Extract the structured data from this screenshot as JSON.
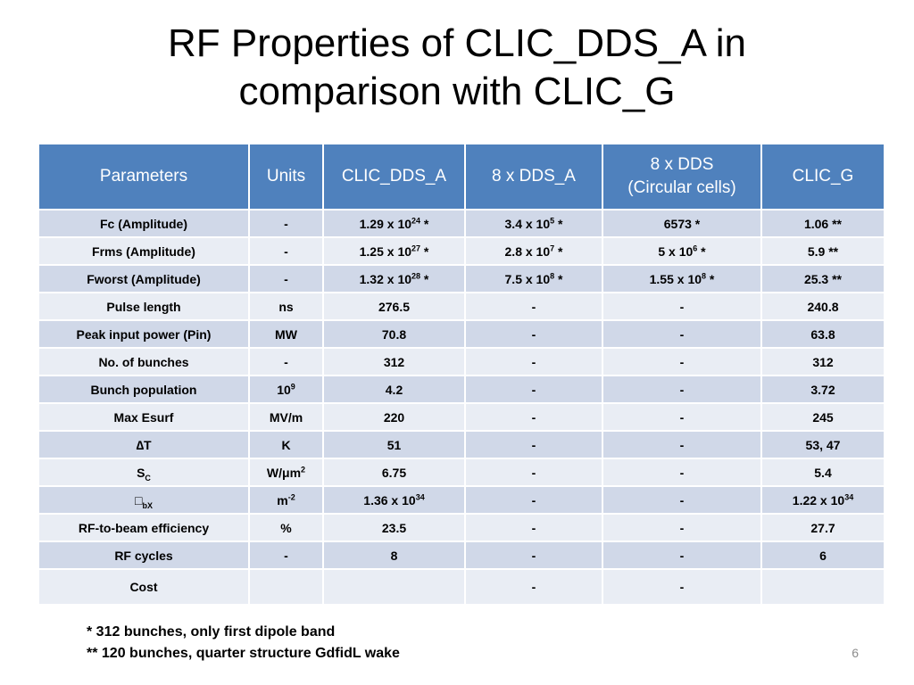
{
  "title": {
    "line1": "RF Properties of CLIC_DDS_A in",
    "line2": "comparison with CLIC_G"
  },
  "table": {
    "headers": [
      "Parameters",
      "Units",
      "CLIC_DDS_A",
      "8 x DDS_A",
      "8 x DDS",
      "(Circular cells)",
      "CLIC_G"
    ],
    "rows": [
      [
        "Fc (Amplitude)",
        "-",
        "1.29 x 10",
        "24",
        " *",
        "3.4 x 10",
        "5",
        " *",
        "6573 *",
        "1.06 **"
      ],
      [
        "Frms (Amplitude)",
        "-",
        "1.25 x 10",
        "27",
        " *",
        "2.8 x 10",
        "7",
        " *",
        "5 x 10",
        "6",
        " *",
        "5.9 **"
      ],
      [
        "Fworst (Amplitude)",
        "-",
        "1.32 x 10",
        "28",
        " *",
        "7.5 x 10",
        "8",
        " *",
        "1.55 x 10",
        "8",
        " *",
        "25.3 **"
      ],
      [
        "Pulse length",
        "ns",
        "276.5",
        "-",
        "-",
        "240.8"
      ],
      [
        "Peak input power (Pin)",
        "MW",
        "70.8",
        "-",
        "-",
        "63.8"
      ],
      [
        "No. of bunches",
        "-",
        "312",
        "-",
        "-",
        "312"
      ],
      [
        "Bunch population",
        "10",
        "9",
        "4.2",
        "-",
        "-",
        "3.72"
      ],
      [
        "Max Esurf",
        "MV/m",
        "220",
        "-",
        "-",
        "245"
      ],
      [
        "∆T",
        "K",
        "51",
        "-",
        "-",
        "53, 47"
      ],
      [
        "S",
        "C",
        "W/μm",
        "2",
        "6.75",
        "-",
        "-",
        "5.4"
      ],
      [
        "□",
        "bX",
        "m",
        "-2",
        "1.36 x 10",
        "34",
        "-",
        "-",
        "1.22 x 10",
        "34"
      ],
      [
        "RF-to-beam efficiency",
        "%",
        "23.5",
        "-",
        "-",
        "27.7"
      ],
      [
        "RF cycles",
        "-",
        "8",
        "-",
        "-",
        "6"
      ],
      [
        "Cost",
        "",
        "",
        "-",
        "-",
        ""
      ]
    ]
  },
  "notes": {
    "line1": "* 312 bunches, only first dipole band",
    "line2": "** 120 bunches, quarter structure GdfidL wake"
  },
  "slide_number": "6",
  "colors": {
    "header_bg": "#4f81bd",
    "row_odd": "#d0d8e8",
    "row_even": "#e9edf4"
  }
}
